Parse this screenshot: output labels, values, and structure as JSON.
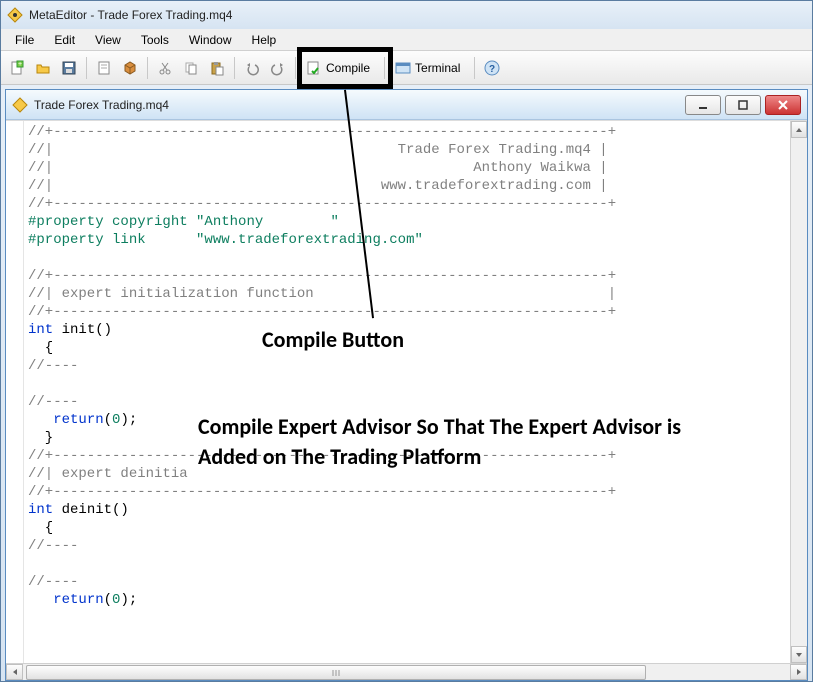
{
  "outer_window": {
    "title": "MetaEditor - Trade Forex Trading.mq4"
  },
  "menubar": {
    "items": [
      "File",
      "Edit",
      "View",
      "Tools",
      "Window",
      "Help"
    ]
  },
  "toolbar": {
    "compile_label": "Compile",
    "terminal_label": "Terminal",
    "icons": {
      "new": "new-file-icon",
      "open": "open-folder-icon",
      "save": "save-icon",
      "book": "book-icon",
      "box": "box-icon",
      "cut": "cut-icon",
      "copy": "copy-icon",
      "paste": "paste-icon",
      "undo": "undo-icon",
      "redo": "redo-icon",
      "compile": "compile-icon",
      "terminal": "terminal-icon",
      "help": "help-icon"
    }
  },
  "inner_window": {
    "title": "Trade Forex Trading.mq4"
  },
  "code": {
    "lines": [
      {
        "t": "//+------------------------------------------------------------------+",
        "cls": "c-gray"
      },
      {
        "t": "//|                                         Trade Forex Trading.mq4 |",
        "cls": "c-gray"
      },
      {
        "t": "//|                                                  Anthony Waikwa |",
        "cls": "c-gray"
      },
      {
        "t": "//|                                       www.tradeforextrading.com |",
        "cls": "c-gray"
      },
      {
        "t": "//+------------------------------------------------------------------+",
        "cls": "c-gray"
      },
      {
        "segments": [
          {
            "t": "#property copyright ",
            "cls": "c-green"
          },
          {
            "t": "\"Anthony        \"",
            "cls": "c-teal"
          }
        ]
      },
      {
        "segments": [
          {
            "t": "#property link      ",
            "cls": "c-green"
          },
          {
            "t": "\"www.tradeforextrading.com\"",
            "cls": "c-teal"
          }
        ]
      },
      {
        "t": "",
        "cls": ""
      },
      {
        "t": "//+------------------------------------------------------------------+",
        "cls": "c-gray"
      },
      {
        "t": "//| expert initialization function                                   |",
        "cls": "c-gray"
      },
      {
        "t": "//+------------------------------------------------------------------+",
        "cls": "c-gray"
      },
      {
        "segments": [
          {
            "t": "int",
            "cls": "c-blue"
          },
          {
            "t": " init()",
            "cls": ""
          }
        ]
      },
      {
        "t": "  {",
        "cls": ""
      },
      {
        "t": "//----",
        "cls": "c-gray"
      },
      {
        "t": "",
        "cls": ""
      },
      {
        "t": "//----",
        "cls": "c-gray"
      },
      {
        "segments": [
          {
            "t": "   ",
            "cls": ""
          },
          {
            "t": "return",
            "cls": "c-blue"
          },
          {
            "t": "(",
            "cls": ""
          },
          {
            "t": "0",
            "cls": "c-teal"
          },
          {
            "t": ");",
            "cls": ""
          }
        ]
      },
      {
        "t": "  }",
        "cls": ""
      },
      {
        "t": "//+------------------------------------------------------------------+",
        "cls": "c-gray"
      },
      {
        "t": "//| expert deinitia",
        "cls": "c-gray"
      },
      {
        "t": "//+------------------------------------------------------------------+",
        "cls": "c-gray"
      },
      {
        "segments": [
          {
            "t": "int",
            "cls": "c-blue"
          },
          {
            "t": " deinit()",
            "cls": ""
          }
        ]
      },
      {
        "t": "  {",
        "cls": ""
      },
      {
        "t": "//----",
        "cls": "c-gray"
      },
      {
        "t": "",
        "cls": ""
      },
      {
        "t": "//----",
        "cls": "c-gray"
      },
      {
        "segments": [
          {
            "t": "   ",
            "cls": ""
          },
          {
            "t": "return",
            "cls": "c-blue"
          },
          {
            "t": "(",
            "cls": ""
          },
          {
            "t": "0",
            "cls": "c-teal"
          },
          {
            "t": ");",
            "cls": ""
          }
        ]
      }
    ]
  },
  "annotations": {
    "label": "Compile Button",
    "text": "Compile Expert Advisor  So That The Expert Advisor is Added on The Trading Platform",
    "highlight_color": "#000000"
  },
  "colors": {
    "window_border": "#5a7ca0",
    "titlebar_gradient_top": "#e8f0f8",
    "titlebar_gradient_bottom": "#d6e4f2",
    "comment": "#808080",
    "preprocessor": "#0d7e5f",
    "string": "#0d7e5f",
    "keyword": "#0033cc",
    "close_btn": "#cc3333"
  }
}
